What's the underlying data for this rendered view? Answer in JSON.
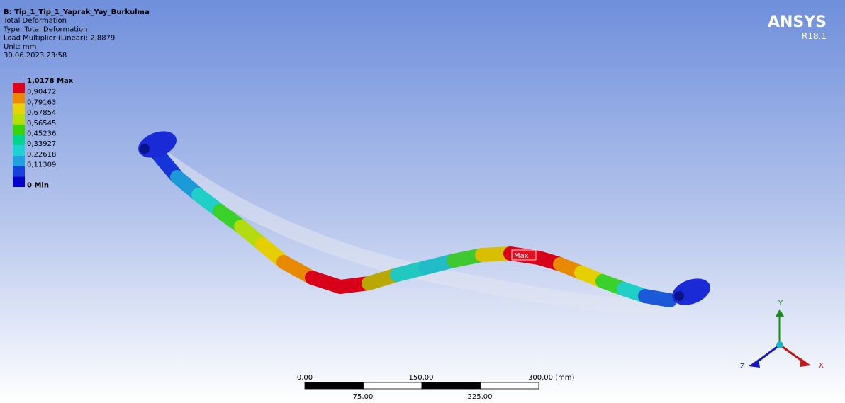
{
  "header": {
    "title": "B: Tip_1_Tip_1_Yaprak_Yay_Burkulma",
    "lines": [
      "Total Deformation",
      "Type: Total Deformation",
      "Load Multiplier (Linear): 2,8879",
      "Unit: mm",
      "30.06.2023 23:58"
    ]
  },
  "legend": {
    "labels": [
      "1,0178 Max",
      "0,90472",
      "0,79163",
      "0,67854",
      "0,56545",
      "0,45236",
      "0,33927",
      "0,22618",
      "0,11309",
      "0 Min"
    ]
  },
  "logo": {
    "name": "ANSYS",
    "version": "R18.1"
  },
  "probe": {
    "label": "Max"
  },
  "scale_bar": {
    "top_labels": [
      "0,00",
      "150,00",
      "300,00 (mm)"
    ],
    "bottom_labels": [
      "75,00",
      "225,00"
    ]
  },
  "triad": {
    "x": "X",
    "y": "Y",
    "z": "Z"
  }
}
